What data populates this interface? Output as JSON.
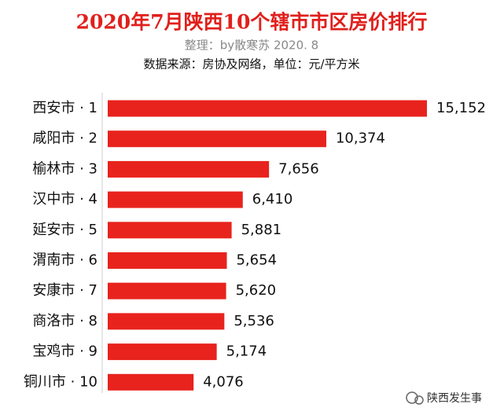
{
  "chart_data": {
    "type": "bar",
    "orientation": "horizontal",
    "title": "2020年7月陕西10个辖市市区房价排行",
    "subtitle": "整理：by散寒苏 2020. 8",
    "source": "数据来源：房协及网络，单位：元/平方米",
    "categories": [
      "西安市 · 1",
      "咸阳市 · 2",
      "榆林市 · 3",
      "汉中市 · 4",
      "延安市 · 5",
      "渭南市 · 6",
      "安康市 · 7",
      "商洛市 · 8",
      "宝鸡市 · 9",
      "铜川市 · 10"
    ],
    "values": [
      15152,
      10374,
      7656,
      6410,
      5881,
      5654,
      5620,
      5536,
      5174,
      4076
    ],
    "value_labels": [
      "15,152",
      "10,374",
      "7,656",
      "6,410",
      "5,881",
      "5,654",
      "5,620",
      "5,536",
      "5,174",
      "4,076"
    ],
    "color": "#e8231d",
    "watermark": "陕西发生事"
  }
}
